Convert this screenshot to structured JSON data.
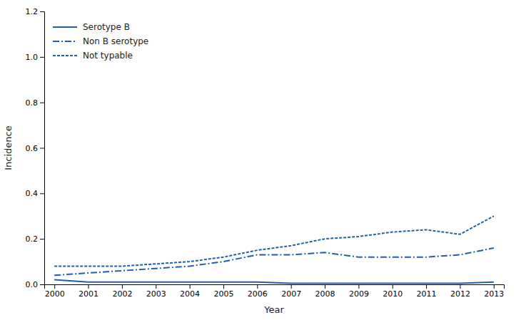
{
  "chart_data": {
    "type": "line",
    "xlabel": "Year",
    "ylabel": "Incidence",
    "x": [
      2000,
      2001,
      2002,
      2003,
      2004,
      2005,
      2006,
      2007,
      2008,
      2009,
      2010,
      2011,
      2012,
      2013
    ],
    "series": [
      {
        "name": "Serotype B",
        "color": "#1F5FAD",
        "line_style": "solid",
        "values": [
          0.02,
          0.01,
          0.01,
          0.01,
          0.01,
          0.01,
          0.01,
          0.005,
          0.005,
          0.005,
          0.005,
          0.005,
          0.005,
          0.01
        ]
      },
      {
        "name": "Non B serotype",
        "color": "#1F5FAD",
        "line_style": "dashdot",
        "values": [
          0.04,
          0.05,
          0.06,
          0.07,
          0.08,
          0.1,
          0.13,
          0.13,
          0.14,
          0.12,
          0.12,
          0.12,
          0.13,
          0.16
        ]
      },
      {
        "name": "Not typable",
        "color": "#1F5FAD",
        "line_style": "dotted",
        "values": [
          0.08,
          0.08,
          0.08,
          0.09,
          0.1,
          0.12,
          0.15,
          0.17,
          0.2,
          0.21,
          0.23,
          0.24,
          0.22,
          0.3
        ]
      }
    ],
    "xlim": [
      1999.7,
      2013.3
    ],
    "xticks": [
      2000,
      2001,
      2002,
      2003,
      2004,
      2005,
      2006,
      2007,
      2008,
      2009,
      2010,
      2011,
      2012,
      2013
    ],
    "ylim": [
      0,
      1.2
    ],
    "yticks": [
      {
        "value": 0.0,
        "label": "0.0"
      },
      0.2,
      0.4,
      0.6,
      0.8,
      {
        "value": 1.0,
        "label": "1.0"
      },
      1.2
    ],
    "legend": "upper left",
    "grid": false
  }
}
